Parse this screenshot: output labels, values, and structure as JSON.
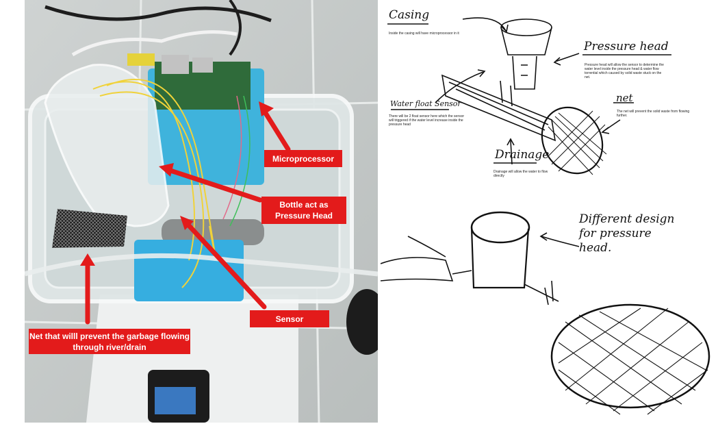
{
  "photo": {
    "labels": {
      "microprocessor": "Microprocessor",
      "bottle": "Bottle act as\nPressure Head",
      "sensor": "Sensor",
      "net": "Net that willl prevent the garbage flowing\nthrough river/drain"
    },
    "colors": {
      "label_bg": "#e31b1b",
      "label_text": "#ffffff",
      "arrow": "#e31b1b"
    }
  },
  "sketch1": {
    "casing": {
      "title": "Casing",
      "note": "Inside the casing will have microprocessor in it"
    },
    "pressure_head": {
      "title": "Pressure head",
      "note": "Pressure head will allow the sensor to determine the water level inside the pressure head & water flow torrential which caused by solid waste stuck on the net."
    },
    "water_float": {
      "title": "Water float Sensor",
      "note": "There will be 2 float sensor here which the sensor will triggered if the water level increase inside the pressure head"
    },
    "net": {
      "title": "net",
      "note": "The net will prevent the solid waste from flowing further."
    },
    "drainage": {
      "title": "Drainage",
      "note": "Drainage will allow the water to flow directly"
    }
  },
  "sketch2": {
    "note": "Different design\nfor pressure\nhead."
  }
}
